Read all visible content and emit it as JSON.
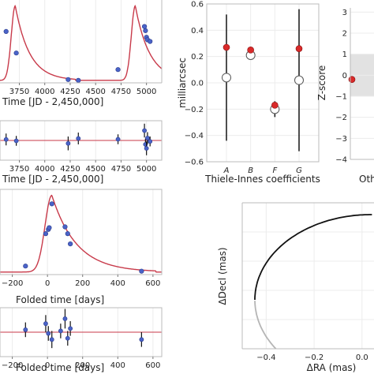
{
  "chart_data": [
    {
      "type": "line",
      "panel": "rv-time",
      "xlabel": "Time [JD - 2,450,000]",
      "x_ticks": [
        3750,
        4000,
        4250,
        4500,
        4750,
        5000
      ],
      "x_tick_labels": [
        "3750",
        "4000",
        "4250",
        "4500",
        "4750",
        "5000"
      ],
      "xlim": [
        3560,
        5150
      ],
      "ylim": [
        0,
        1
      ],
      "points": [
        {
          "x": 3620,
          "y": 0.62
        },
        {
          "x": 3720,
          "y": 0.36
        },
        {
          "x": 4230,
          "y": 0.04
        },
        {
          "x": 4330,
          "y": 0.03
        },
        {
          "x": 4720,
          "y": 0.16
        },
        {
          "x": 4980,
          "y": 0.68
        },
        {
          "x": 4990,
          "y": 0.63
        },
        {
          "x": 5000,
          "y": 0.55
        },
        {
          "x": 5010,
          "y": 0.52
        },
        {
          "x": 5035,
          "y": 0.5
        }
      ]
    },
    {
      "type": "scatter",
      "panel": "rv-time-residuals",
      "xlabel": "Time [JD - 2,450,000]",
      "x_ticks": [
        3750,
        4000,
        4250,
        4500,
        4750,
        5000
      ],
      "x_tick_labels": [
        "3750",
        "4000",
        "4250",
        "4500",
        "4750",
        "5000"
      ],
      "xlim": [
        3560,
        5150
      ],
      "ylim": [
        -1,
        1
      ],
      "points": [
        {
          "x": 3620,
          "y": 0.05,
          "err": 0.3
        },
        {
          "x": 3720,
          "y": -0.02,
          "err": 0.25
        },
        {
          "x": 4230,
          "y": -0.15,
          "err": 0.35
        },
        {
          "x": 4330,
          "y": 0.1,
          "err": 0.3
        },
        {
          "x": 4720,
          "y": 0.06,
          "err": 0.25
        },
        {
          "x": 4980,
          "y": 0.5,
          "err": 0.35
        },
        {
          "x": 4990,
          "y": -0.2,
          "err": 0.3
        },
        {
          "x": 5000,
          "y": -0.4,
          "err": 0.35
        },
        {
          "x": 5010,
          "y": 0.12,
          "err": 0.3
        },
        {
          "x": 5035,
          "y": -0.05,
          "err": 0.25
        }
      ]
    },
    {
      "type": "line",
      "panel": "rv-folded",
      "xlabel": "Folded time [days]",
      "x_ticks": [
        -200,
        0,
        200,
        400,
        600
      ],
      "x_tick_labels": [
        "−200",
        "0",
        "200",
        "400",
        "600"
      ],
      "xlim": [
        -270,
        650
      ],
      "ylim": [
        0,
        1
      ],
      "points": [
        {
          "x": -125,
          "y": 0.1
        },
        {
          "x": -10,
          "y": 0.48
        },
        {
          "x": 5,
          "y": 0.53
        },
        {
          "x": 10,
          "y": 0.55
        },
        {
          "x": 25,
          "y": 0.83
        },
        {
          "x": 100,
          "y": 0.56
        },
        {
          "x": 115,
          "y": 0.48
        },
        {
          "x": 130,
          "y": 0.36
        },
        {
          "x": 535,
          "y": 0.04
        }
      ]
    },
    {
      "type": "scatter",
      "panel": "rv-folded-residuals",
      "xlabel": "Folded time [days]",
      "x_ticks": [
        -200,
        0,
        200,
        400,
        600
      ],
      "x_tick_labels": [
        "−200",
        "0",
        "200",
        "400",
        "600"
      ],
      "xlim": [
        -270,
        650
      ],
      "ylim": [
        -1,
        1
      ],
      "points": [
        {
          "x": -125,
          "y": 0.1,
          "err": 0.3
        },
        {
          "x": -10,
          "y": 0.35,
          "err": 0.35
        },
        {
          "x": 5,
          "y": -0.05,
          "err": 0.3
        },
        {
          "x": 25,
          "y": -0.3,
          "err": 0.35
        },
        {
          "x": 75,
          "y": 0.05,
          "err": 0.3
        },
        {
          "x": 100,
          "y": 0.55,
          "err": 0.4
        },
        {
          "x": 115,
          "y": -0.25,
          "err": 0.3
        },
        {
          "x": 130,
          "y": 0.15,
          "err": 0.3
        },
        {
          "x": 535,
          "y": -0.3,
          "err": 0.3
        }
      ]
    },
    {
      "type": "scatter",
      "panel": "thiele-innes",
      "xlabel": "Thiele-Innes coefficients",
      "ylabel": "milliarcsec",
      "categories": [
        "A",
        "B",
        "F",
        "G"
      ],
      "ylim": [
        -0.6,
        0.6
      ],
      "y_ticks": [
        -0.6,
        -0.4,
        -0.2,
        0.0,
        0.2,
        0.4,
        0.6
      ],
      "y_tick_labels": [
        "−0.6",
        "−0.4",
        "−0.2",
        "0.0",
        "0.2",
        "0.4",
        "0.6"
      ],
      "series": [
        {
          "marker": "red-filled",
          "values": [
            0.27,
            0.25,
            -0.17,
            0.26
          ]
        },
        {
          "marker": "open-circle",
          "values": [
            0.04,
            0.21,
            -0.2,
            0.02
          ],
          "err": [
            0.48,
            0.03,
            0.06,
            0.54
          ]
        }
      ]
    },
    {
      "type": "scatter",
      "panel": "z-score",
      "ylabel": "Z-score",
      "xlabel": "Oth",
      "ylim": [
        -4,
        3.2
      ],
      "y_ticks": [
        -4,
        -3,
        -2,
        -1,
        0,
        1,
        2,
        3
      ],
      "y_tick_labels": [
        "−4",
        "−3",
        "−2",
        "−1",
        "0",
        "1",
        "2",
        "3"
      ],
      "shaded_band": [
        -1,
        1
      ],
      "points": [
        {
          "y": -0.2
        }
      ]
    },
    {
      "type": "line",
      "panel": "orbit",
      "xlabel": "ΔRA (mas)",
      "ylabel": "ΔDecl (mas)",
      "x_ticks": [
        -0.4,
        -0.2,
        0.0
      ],
      "x_tick_labels": [
        "−0.4",
        "−0.2",
        "0.0"
      ],
      "xlim": [
        -0.5,
        0.05
      ],
      "series": [
        {
          "color": "#111111"
        },
        {
          "color": "#b5b5b5"
        }
      ]
    }
  ]
}
